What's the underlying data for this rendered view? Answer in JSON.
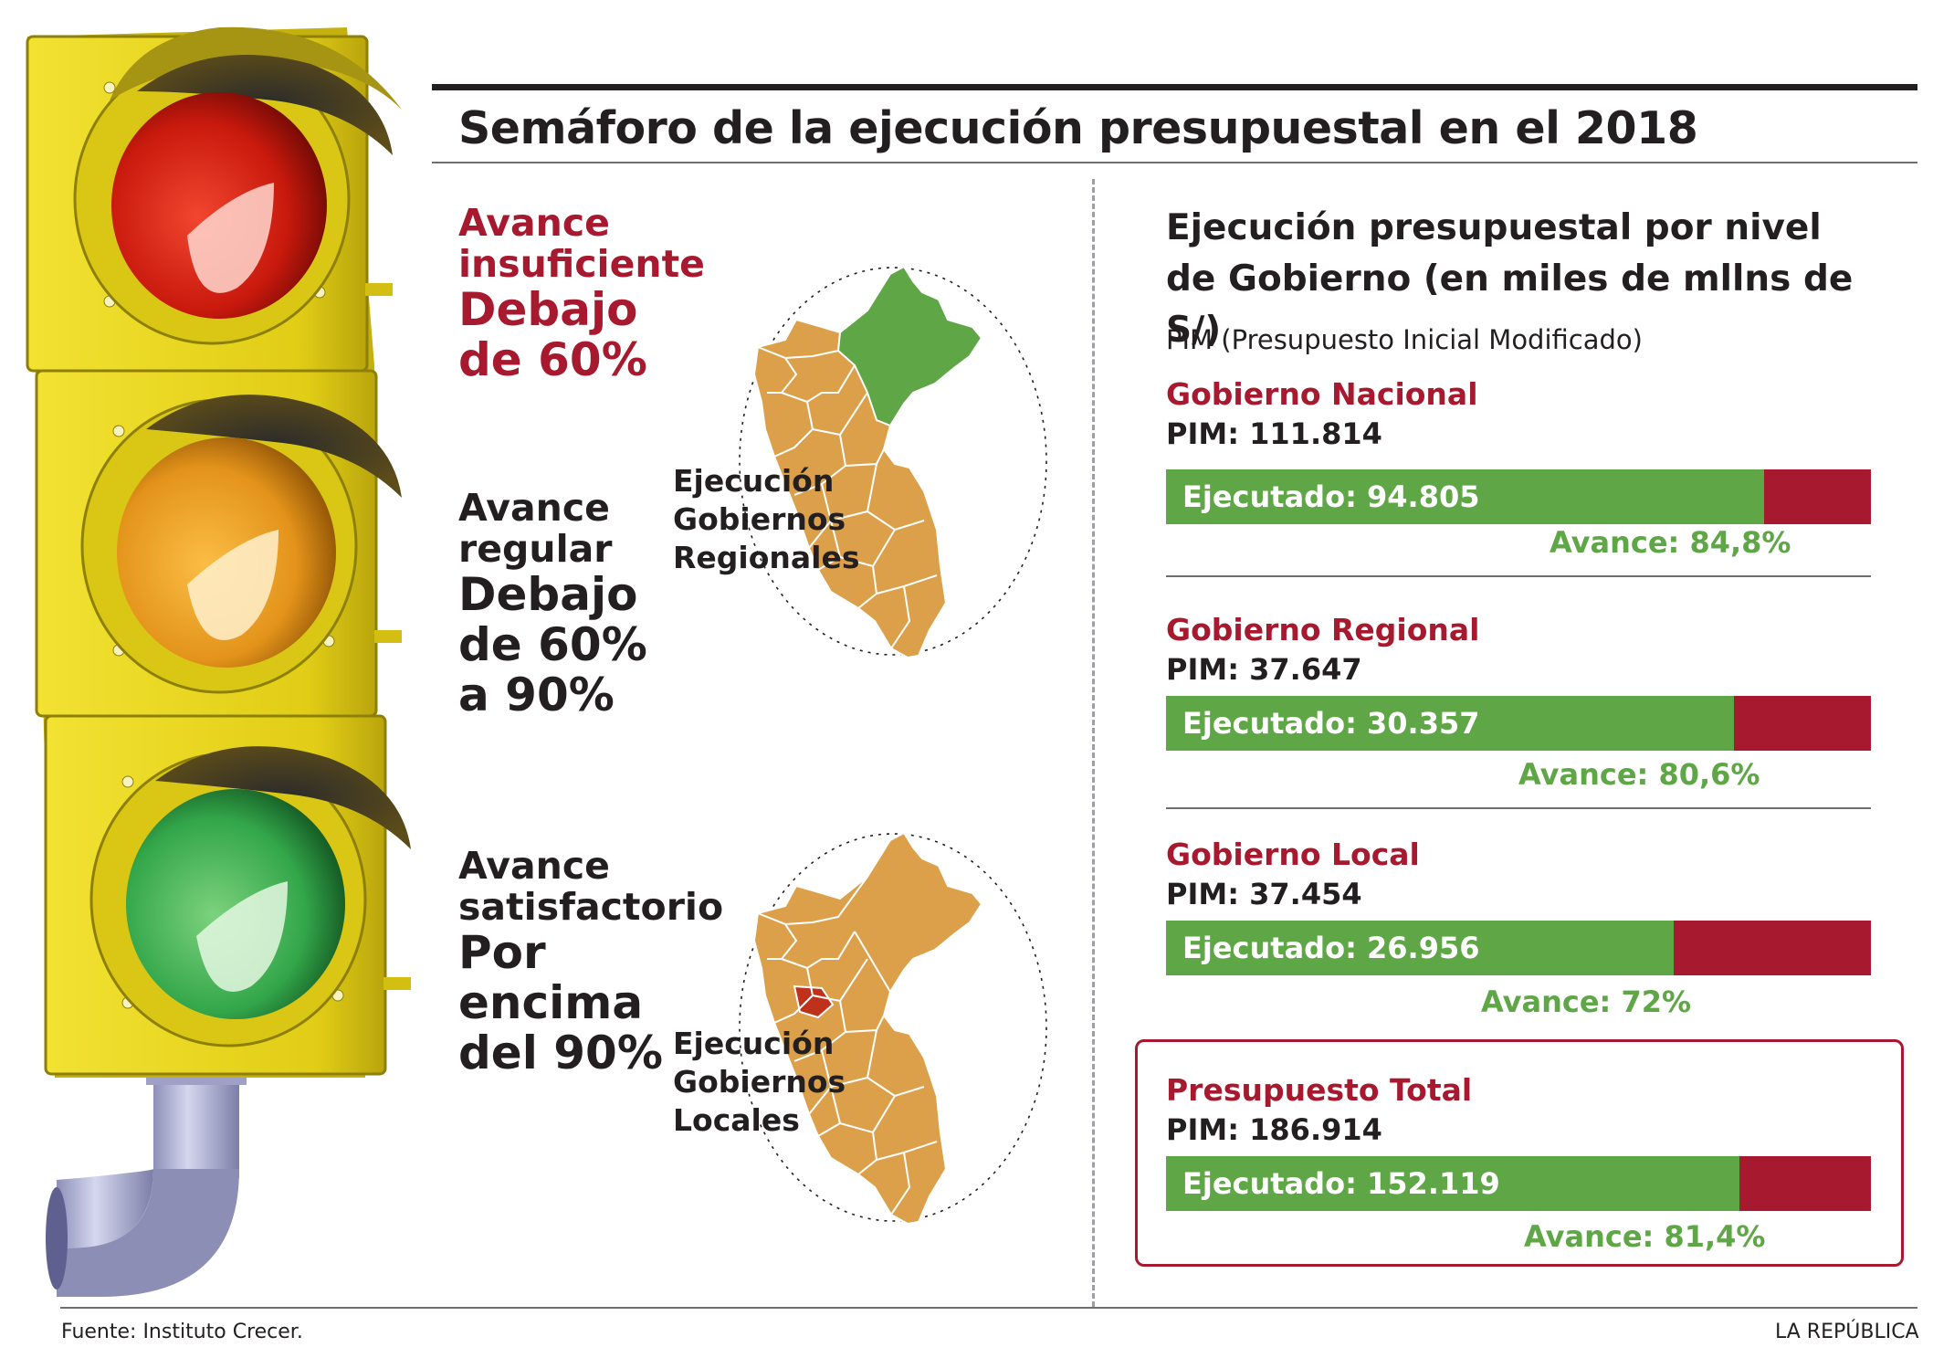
{
  "title": "Semáforo de la ejecución presupuestal en el 2018",
  "levels": {
    "red": {
      "line1": "Avance",
      "line2": "insuficiente",
      "line3": "Debajo",
      "line4": "de 60%"
    },
    "yellow": {
      "line1": "Avance",
      "line2": "regular",
      "line3": "Debajo",
      "line4": "de 60%",
      "line5": "a 90%"
    },
    "green": {
      "line1": "Avance",
      "line2": "satisfactorio",
      "line3": "Por",
      "line4": "encima",
      "line5": "del 90%"
    }
  },
  "maps": {
    "regional": {
      "line1": "Ejecución",
      "line2": "Gobiernos",
      "line3": "Regionales",
      "fill": "#dca04a",
      "highlight": "#5ea646"
    },
    "local": {
      "line1": "Ejecución",
      "line2": "Gobiernos",
      "line3": "Locales",
      "fill": "#dca04a",
      "highlight": "#c0311c"
    }
  },
  "panel": {
    "title_line1": "Ejecución presupuestal por nivel",
    "title_line2": "de Gobierno (en miles de mllns de S/)",
    "subtitle": "PIM (Presupuesto Inicial Modificado)"
  },
  "sections": [
    {
      "name": "Gobierno Nacional",
      "pim": "PIM: 111.814",
      "ejecutado": "Ejecutado: 94.805",
      "avance": "Avance: 84,8%",
      "progress": 0.848
    },
    {
      "name": "Gobierno Regional",
      "pim": "PIM: 37.647",
      "ejecutado": "Ejecutado: 30.357",
      "avance": "Avance: 80,6%",
      "progress": 0.806
    },
    {
      "name": "Gobierno Local",
      "pim": "PIM: 37.454",
      "ejecutado": "Ejecutado: 26.956",
      "avance": "Avance: 72%",
      "progress": 0.72
    },
    {
      "name": "Presupuesto Total",
      "pim": "PIM: 186.914",
      "ejecutado": "Ejecutado: 152.119",
      "avance": "Avance: 81,4%",
      "progress": 0.814
    }
  ],
  "colors": {
    "accent_red": "#a6192e",
    "bar_green": "#5ea646",
    "housing_yellow": "#e8d51a",
    "map_orange": "#dca04a"
  },
  "footer": {
    "source": "Fuente: Instituto Crecer.",
    "brand": "LA REPÚBLICA"
  }
}
